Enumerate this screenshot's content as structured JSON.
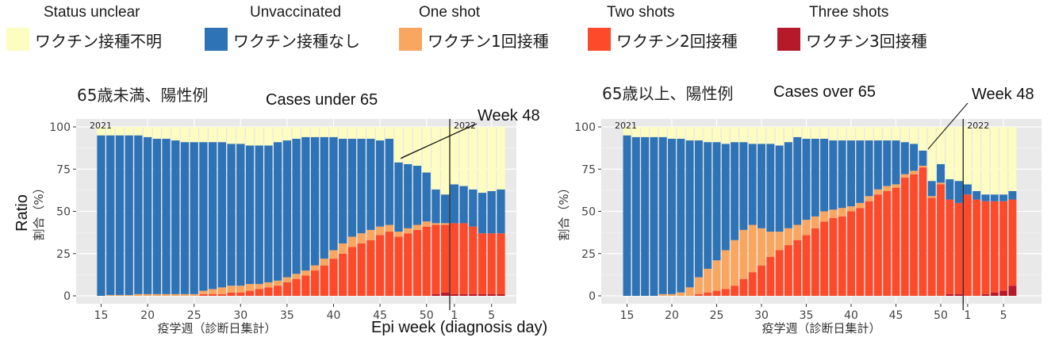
{
  "legend": {
    "items": [
      {
        "en": "Status unclear",
        "ja": "ワクチン接種不明",
        "color": "#fdfdc1"
      },
      {
        "en": "Unvaccinated",
        "ja": "ワクチン接種なし",
        "color": "#2e73b5"
      },
      {
        "en": "One shot",
        "ja": "ワクチン1回接種",
        "color": "#f9a660"
      },
      {
        "en": "Two shots",
        "ja": "ワクチン2回接種",
        "color": "#fc4a2a"
      },
      {
        "en": "Three shots",
        "ja": "ワクチン3回接種",
        "color": "#b5192a"
      }
    ]
  },
  "shared": {
    "ylabel_en": "Ratio",
    "ylabel_ja": "割合（%）",
    "xlabel_ja": "疫学週（診断日集計）",
    "xlabel_en": "Epi week (diagnosis day)",
    "year_labels": [
      "2021",
      "2022"
    ],
    "annotation": "Week 48",
    "panel_bg": "#e9e9e9"
  },
  "chart_data": [
    {
      "type": "bar",
      "stacked": true,
      "title_ja": "65歳未満、陽性例",
      "title_en": "Cases under 65",
      "xlabel": "疫学週（診断日集計）",
      "ylabel": "割合（%）",
      "ylim": [
        0,
        100
      ],
      "yticks": [
        0,
        25,
        50,
        75,
        100
      ],
      "xtick_labels": [
        "15",
        "20",
        "25",
        "30",
        "35",
        "40",
        "45",
        "50",
        "1",
        "5"
      ],
      "categories": [
        "2021-W15",
        "2021-W16",
        "2021-W17",
        "2021-W18",
        "2021-W19",
        "2021-W20",
        "2021-W21",
        "2021-W22",
        "2021-W23",
        "2021-W24",
        "2021-W25",
        "2021-W26",
        "2021-W27",
        "2021-W28",
        "2021-W29",
        "2021-W30",
        "2021-W31",
        "2021-W32",
        "2021-W33",
        "2021-W34",
        "2021-W35",
        "2021-W36",
        "2021-W37",
        "2021-W38",
        "2021-W39",
        "2021-W40",
        "2021-W41",
        "2021-W42",
        "2021-W43",
        "2021-W44",
        "2021-W45",
        "2021-W46",
        "2021-W47",
        "2021-W48",
        "2021-W49",
        "2021-W50",
        "2021-W51",
        "2021-W52",
        "2022-W1",
        "2022-W2",
        "2022-W3",
        "2022-W4",
        "2022-W5",
        "2022-W6"
      ],
      "series": [
        {
          "name": "ワクチン3回接種",
          "values": [
            0,
            0,
            0,
            0,
            0,
            0,
            0,
            0,
            0,
            0,
            0,
            0,
            0,
            0,
            0,
            0,
            0,
            0,
            0,
            0,
            0,
            0,
            0,
            0,
            0,
            0,
            0,
            0,
            0,
            0,
            0,
            0,
            0,
            0,
            0,
            0,
            1,
            2,
            1,
            1,
            1,
            1,
            1,
            1
          ]
        },
        {
          "name": "ワクチン2回接種",
          "values": [
            0,
            0,
            0,
            0,
            0,
            0,
            0,
            0,
            0,
            0,
            0,
            1,
            1,
            1,
            2,
            2,
            3,
            4,
            5,
            6,
            8,
            10,
            12,
            15,
            18,
            22,
            25,
            29,
            31,
            33,
            36,
            38,
            35,
            37,
            39,
            41,
            41,
            40,
            42,
            42,
            40,
            36,
            36,
            36
          ]
        },
        {
          "name": "ワクチン1回接種",
          "values": [
            0,
            0.5,
            0.5,
            0.5,
            1,
            1,
            1,
            1,
            1,
            1,
            1,
            2,
            3,
            4,
            4,
            4,
            4,
            3,
            3,
            3,
            3,
            3,
            3,
            3,
            4,
            5,
            6,
            6,
            6,
            6,
            5,
            4,
            3,
            3,
            3,
            3,
            1,
            1,
            0,
            0,
            0,
            0,
            0,
            0
          ]
        },
        {
          "name": "ワクチン接種なし",
          "values": [
            95,
            94.5,
            94.5,
            94.5,
            94,
            93,
            92,
            92,
            91,
            90,
            90,
            88,
            87,
            86,
            84,
            84,
            82,
            82,
            81,
            82,
            81,
            80,
            79,
            76,
            72,
            67,
            62,
            58,
            56,
            54,
            51,
            51,
            41,
            38,
            35,
            29,
            20,
            17,
            23,
            22,
            22,
            24,
            25,
            26
          ]
        },
        {
          "name": "ワクチン接種不明",
          "values": [
            5,
            5,
            5,
            5,
            5,
            6,
            7,
            7,
            8,
            9,
            9,
            9,
            9,
            9,
            10,
            10,
            11,
            11,
            11,
            9,
            8,
            7,
            6,
            6,
            6,
            6,
            7,
            7,
            7,
            7,
            8,
            7,
            21,
            22,
            23,
            27,
            37,
            40,
            34,
            35,
            37,
            39,
            38,
            37
          ]
        }
      ]
    },
    {
      "type": "bar",
      "stacked": true,
      "title_ja": "65歳以上、陽性例",
      "title_en": "Cases over 65",
      "xlabel": "疫学週（診断日集計）",
      "ylabel": "割合（%）",
      "ylim": [
        0,
        100
      ],
      "yticks": [
        0,
        25,
        50,
        75,
        100
      ],
      "xtick_labels": [
        "15",
        "20",
        "25",
        "30",
        "35",
        "40",
        "45",
        "50",
        "1",
        "5"
      ],
      "categories": [
        "2021-W15",
        "2021-W16",
        "2021-W17",
        "2021-W18",
        "2021-W19",
        "2021-W20",
        "2021-W21",
        "2021-W22",
        "2021-W23",
        "2021-W24",
        "2021-W25",
        "2021-W26",
        "2021-W27",
        "2021-W28",
        "2021-W29",
        "2021-W30",
        "2021-W31",
        "2021-W32",
        "2021-W33",
        "2021-W34",
        "2021-W35",
        "2021-W36",
        "2021-W37",
        "2021-W38",
        "2021-W39",
        "2021-W40",
        "2021-W41",
        "2021-W42",
        "2021-W43",
        "2021-W44",
        "2021-W45",
        "2021-W46",
        "2021-W47",
        "2021-W48",
        "2021-W49",
        "2021-W50",
        "2021-W51",
        "2021-W52",
        "2022-W1",
        "2022-W2",
        "2022-W3",
        "2022-W4",
        "2022-W5",
        "2022-W6"
      ],
      "series": [
        {
          "name": "ワクチン3回接種",
          "values": [
            0,
            0,
            0,
            0,
            0,
            0,
            0,
            0,
            0,
            0,
            0,
            0,
            0,
            0,
            0,
            0,
            0,
            0,
            0,
            0,
            0,
            0,
            0,
            0,
            0,
            0,
            0,
            0,
            0,
            0,
            0,
            0,
            0,
            0,
            0,
            0,
            1,
            1,
            0,
            0,
            1,
            2,
            3,
            6
          ]
        },
        {
          "name": "ワクチン2回接種",
          "values": [
            0,
            0,
            0,
            0,
            0,
            0,
            0,
            0,
            1,
            2,
            3,
            4,
            6,
            10,
            14,
            18,
            23,
            27,
            30,
            33,
            36,
            40,
            44,
            46,
            47,
            50,
            52,
            56,
            60,
            62,
            64,
            70,
            72,
            76,
            58,
            66,
            56,
            54,
            60,
            57,
            55,
            54,
            53,
            51
          ]
        },
        {
          "name": "ワクチン1回接種",
          "values": [
            0,
            0,
            0,
            0,
            1,
            1,
            2,
            5,
            10,
            14,
            18,
            23,
            27,
            29,
            28,
            22,
            15,
            11,
            10,
            9,
            9,
            7,
            6,
            5,
            5,
            3,
            3,
            3,
            3,
            3,
            2,
            2,
            2,
            1,
            1,
            1,
            0,
            0,
            0,
            0,
            0,
            0,
            0,
            0
          ]
        },
        {
          "name": "ワクチン接種なし",
          "values": [
            95,
            94,
            94,
            94,
            93,
            92,
            91,
            87,
            81,
            75,
            70,
            63,
            58,
            52,
            48,
            50,
            52,
            51,
            51,
            52,
            48,
            46,
            43,
            41,
            40,
            39,
            37,
            33,
            29,
            27,
            26,
            19,
            16,
            9,
            9,
            11,
            12,
            13,
            6,
            5,
            4,
            4,
            4,
            5
          ]
        },
        {
          "name": "ワクチン接種不明",
          "values": [
            5,
            6,
            6,
            6,
            6,
            7,
            7,
            8,
            8,
            9,
            9,
            10,
            9,
            9,
            10,
            10,
            10,
            11,
            9,
            6,
            7,
            7,
            7,
            8,
            8,
            8,
            8,
            8,
            8,
            8,
            8,
            9,
            10,
            14,
            32,
            22,
            31,
            32,
            34,
            38,
            40,
            40,
            40,
            38
          ]
        }
      ]
    }
  ]
}
